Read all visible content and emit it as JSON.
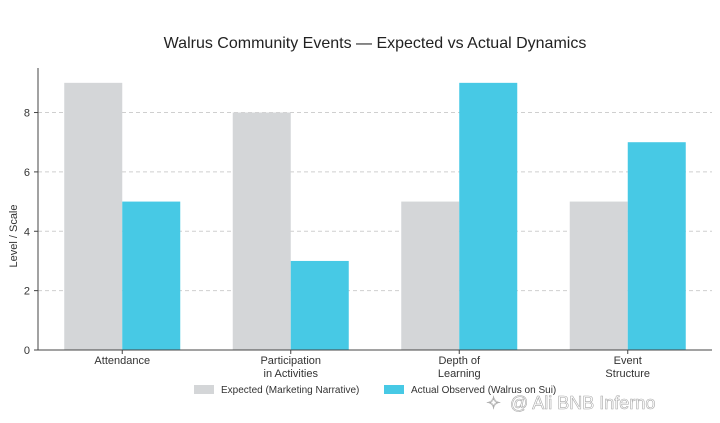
{
  "chart_data": {
    "type": "bar",
    "title": "Walrus Community Events — Expected vs Actual Dynamics",
    "xlabel": "",
    "ylabel": "Level / Scale",
    "ylim": [
      0,
      9.5
    ],
    "yticks": [
      0,
      2,
      4,
      6,
      8
    ],
    "grid": true,
    "categories": [
      [
        "Attendance"
      ],
      [
        "Participation",
        "in Activities"
      ],
      [
        "Depth of",
        "Learning"
      ],
      [
        "Event",
        "Structure"
      ]
    ],
    "series": [
      {
        "name": "Expected (Marketing Narrative)",
        "color": "#d4d6d8",
        "values": [
          9,
          8,
          5,
          5
        ]
      },
      {
        "name": "Actual Observed (Walrus on Sui)",
        "color": "#47c9e5",
        "values": [
          5,
          3,
          9,
          7
        ]
      }
    ],
    "legend": "bottom"
  },
  "watermark": "@ Ali BNB Inferno"
}
